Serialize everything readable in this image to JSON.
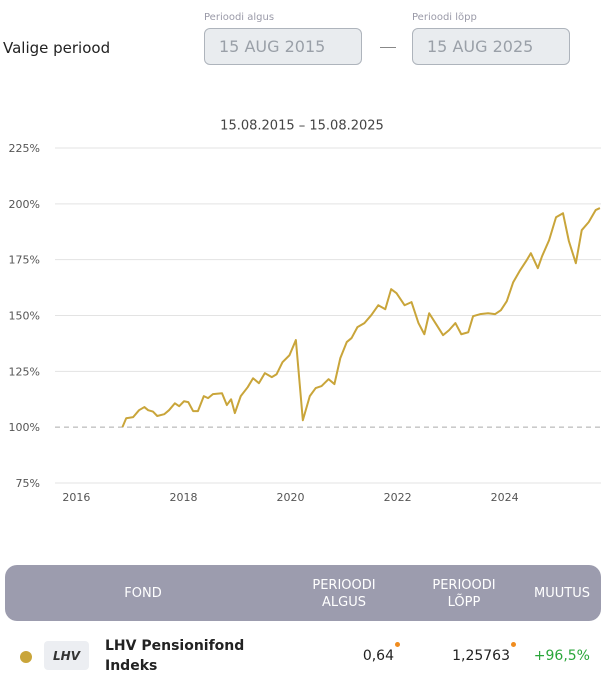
{
  "period_picker": {
    "label": "Valige periood",
    "start_label": "Perioodi algus",
    "start_value": "15 AUG 2015",
    "end_label": "Perioodi lõpp",
    "end_value": "15 AUG 2025"
  },
  "chart_data": {
    "type": "line",
    "title": "15.08.2015 – 15.08.2025",
    "x": [
      2016.86,
      2016.93,
      2017.06,
      2017.17,
      2017.27,
      2017.34,
      2017.43,
      2017.51,
      2017.64,
      2017.73,
      2017.84,
      2017.92,
      2018.01,
      2018.09,
      2018.18,
      2018.27,
      2018.38,
      2018.46,
      2018.55,
      2018.72,
      2018.81,
      2018.89,
      2018.96,
      2019.07,
      2019.2,
      2019.3,
      2019.41,
      2019.52,
      2019.65,
      2019.74,
      2019.85,
      2019.98,
      2020.1,
      2020.23,
      2020.36,
      2020.47,
      2020.58,
      2020.71,
      2020.82,
      2020.93,
      2021.05,
      2021.14,
      2021.25,
      2021.38,
      2021.51,
      2021.64,
      2021.77,
      2021.88,
      2021.98,
      2022.13,
      2022.26,
      2022.39,
      2022.5,
      2022.59,
      2022.72,
      2022.85,
      2022.96,
      2023.08,
      2023.19,
      2023.32,
      2023.41,
      2023.54,
      2023.69,
      2023.82,
      2023.93,
      2024.04,
      2024.16,
      2024.29,
      2024.4,
      2024.49,
      2024.62,
      2024.7,
      2024.83,
      2024.96,
      2025.09,
      2025.2,
      2025.33,
      2025.44,
      2025.57,
      2025.7,
      2025.78
    ],
    "series": [
      {
        "name": "LHV Pensionifond Indeks",
        "color": "#c9a53a",
        "values": [
          100,
          104,
          104.5,
          107.6,
          109,
          107.6,
          107,
          105,
          105.8,
          107.6,
          110.7,
          109.4,
          111.6,
          111.2,
          107.2,
          107.2,
          113.9,
          113,
          114.8,
          115.2,
          109.9,
          112.5,
          106.3,
          113.9,
          117.9,
          121.9,
          119.7,
          124.2,
          122.4,
          123.7,
          129.1,
          132.2,
          139,
          103.1,
          113.9,
          117.5,
          118.4,
          121.5,
          119.3,
          130.9,
          138.1,
          139.9,
          144.8,
          146.6,
          150.2,
          154.6,
          152.8,
          161.8,
          160,
          154.6,
          156,
          146.6,
          141.6,
          151,
          146.1,
          141.2,
          143.4,
          146.6,
          141.6,
          142.5,
          149.7,
          150.6,
          151,
          150.6,
          152.4,
          156.4,
          164.9,
          170.3,
          174.3,
          177.9,
          171.2,
          176.6,
          183.7,
          194,
          195.8,
          183.3,
          173.4,
          188.2,
          191.8,
          197.2,
          198.1
        ]
      }
    ],
    "xlim": [
      2015.6,
      2025.8
    ],
    "xticks": [
      2016,
      2018,
      2020,
      2022,
      2024
    ],
    "ylim": [
      75,
      225
    ],
    "yticks": [
      {
        "value": 75,
        "label": "75%"
      },
      {
        "value": 100,
        "label": "100%"
      },
      {
        "value": 125,
        "label": "125%"
      },
      {
        "value": 150,
        "label": "150%"
      },
      {
        "value": 175,
        "label": "175%"
      },
      {
        "value": 200,
        "label": "200%"
      },
      {
        "value": 225,
        "label": "225%"
      }
    ],
    "grid": true,
    "reference_line": 100
  },
  "table": {
    "headers": [
      "FOND",
      "PERIOODI ALGUS",
      "PERIOODI LÕPP",
      "MUUTUS"
    ],
    "rows": [
      {
        "logo": "LHV",
        "name": "LHV Pensionifond Indeks",
        "start": "0,64",
        "end": "1,25763",
        "change": "+96,5%"
      }
    ]
  }
}
